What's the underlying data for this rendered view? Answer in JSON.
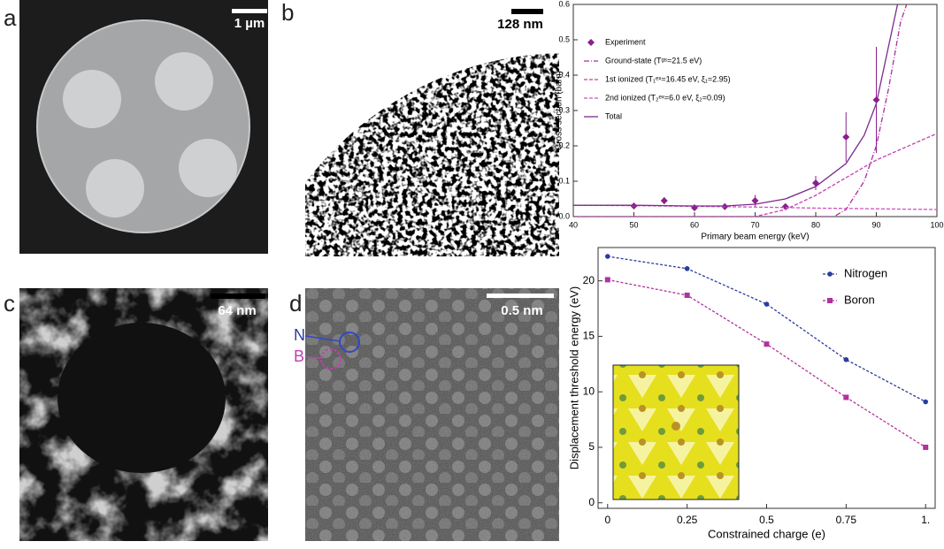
{
  "panels": {
    "a": {
      "label": "a",
      "scale_bar": "1 µm"
    },
    "b": {
      "label": "b",
      "scale_bar": "128 nm"
    },
    "c": {
      "label": "c",
      "scale_bar": "64 nm"
    },
    "d": {
      "label": "d",
      "scale_bar": "0.5 nm",
      "atoms": [
        "N",
        "B"
      ]
    }
  },
  "chart_data": [
    {
      "type": "line",
      "xlabel": "Primary beam energy (keV)",
      "ylabel": "Cross section (barn)",
      "xlim": [
        40,
        100
      ],
      "ylim": [
        0,
        0.6
      ],
      "xticks": [
        40,
        50,
        60,
        70,
        80,
        90,
        100
      ],
      "yticks": [
        {
          "value": 0,
          "label": "0.0"
        },
        0.1,
        0.2,
        0.3,
        0.4,
        0.5,
        0.6
      ],
      "legend": "upper left",
      "series": [
        {
          "name": "Experiment",
          "color": "#8a1f8c",
          "mode": "markers",
          "marker": "diamond",
          "x": [
            50,
            55,
            60,
            65,
            70,
            75,
            80,
            85,
            90
          ],
          "values": [
            0.03,
            0.045,
            0.025,
            0.028,
            0.045,
            0.028,
            0.095,
            0.225,
            0.33
          ],
          "errors": [
            0.004,
            0.01,
            0.003,
            0.008,
            0.016,
            0.005,
            0.02,
            0.07,
            0.15
          ]
        },
        {
          "name": "Ground-state (Tᵍˢ=21.5 eV)",
          "color": "#a8309f",
          "mode": "line",
          "dash": "6 2 1 2",
          "x": [
            40,
            60,
            80,
            83,
            85,
            88,
            90,
            92,
            94,
            95
          ],
          "values": [
            0,
            0,
            0,
            0,
            0.02,
            0.1,
            0.2,
            0.36,
            0.55,
            0.6
          ]
        },
        {
          "name": "1st ionized (T₁ᵉˣ=16.45 eV, ξ₁=2.95)",
          "color": "#c23fb2",
          "mode": "line",
          "dash": "4 2",
          "x": [
            40,
            60,
            70,
            75,
            80,
            85,
            88,
            90,
            92,
            94,
            96,
            98,
            100
          ],
          "values": [
            0,
            0,
            0,
            0.02,
            0.06,
            0.11,
            0.14,
            0.16,
            0.175,
            0.19,
            0.205,
            0.22,
            0.235
          ]
        },
        {
          "name": "2nd ionized (T₂ᵉˣ=6.0 eV, ξ₂=0.09)",
          "color": "#d050c2",
          "mode": "line",
          "dash": "4 2",
          "x": [
            40,
            50,
            60,
            70,
            80,
            90,
            100
          ],
          "values": [
            0.032,
            0.031,
            0.029,
            0.027,
            0.024,
            0.022,
            0.02
          ]
        },
        {
          "name": "Total",
          "color": "#7b2a8e",
          "mode": "line",
          "dash": "",
          "x": [
            40,
            50,
            60,
            65,
            70,
            75,
            80,
            85,
            88,
            90,
            92,
            93.5
          ],
          "values": [
            0.032,
            0.032,
            0.03,
            0.03,
            0.035,
            0.05,
            0.085,
            0.15,
            0.23,
            0.32,
            0.48,
            0.6
          ]
        }
      ]
    },
    {
      "type": "line",
      "xlabel": "Constrained charge (e)",
      "ylabel": "Displacement threshold energy (eV)",
      "xlim": [
        -0.03,
        1.03
      ],
      "ylim": [
        -0.5,
        23
      ],
      "xticks": [
        0,
        0.25,
        0.5,
        0.75,
        {
          "value": 1,
          "label": "1."
        }
      ],
      "yticks": [
        0,
        5,
        10,
        15,
        20
      ],
      "legend": "upper right",
      "x": [
        0,
        0.25,
        0.5,
        0.75,
        1
      ],
      "series": [
        {
          "name": "Nitrogen",
          "color": "#2b3c9e",
          "mode": "both",
          "marker": "circle",
          "dash": "3 2",
          "values": [
            22.2,
            21.1,
            17.9,
            12.9,
            9.1
          ]
        },
        {
          "name": "Boron",
          "color": "#b0329e",
          "mode": "both",
          "marker": "square",
          "dash": "3 2",
          "values": [
            20.1,
            18.7,
            14.3,
            9.5,
            5.0
          ]
        }
      ]
    }
  ]
}
